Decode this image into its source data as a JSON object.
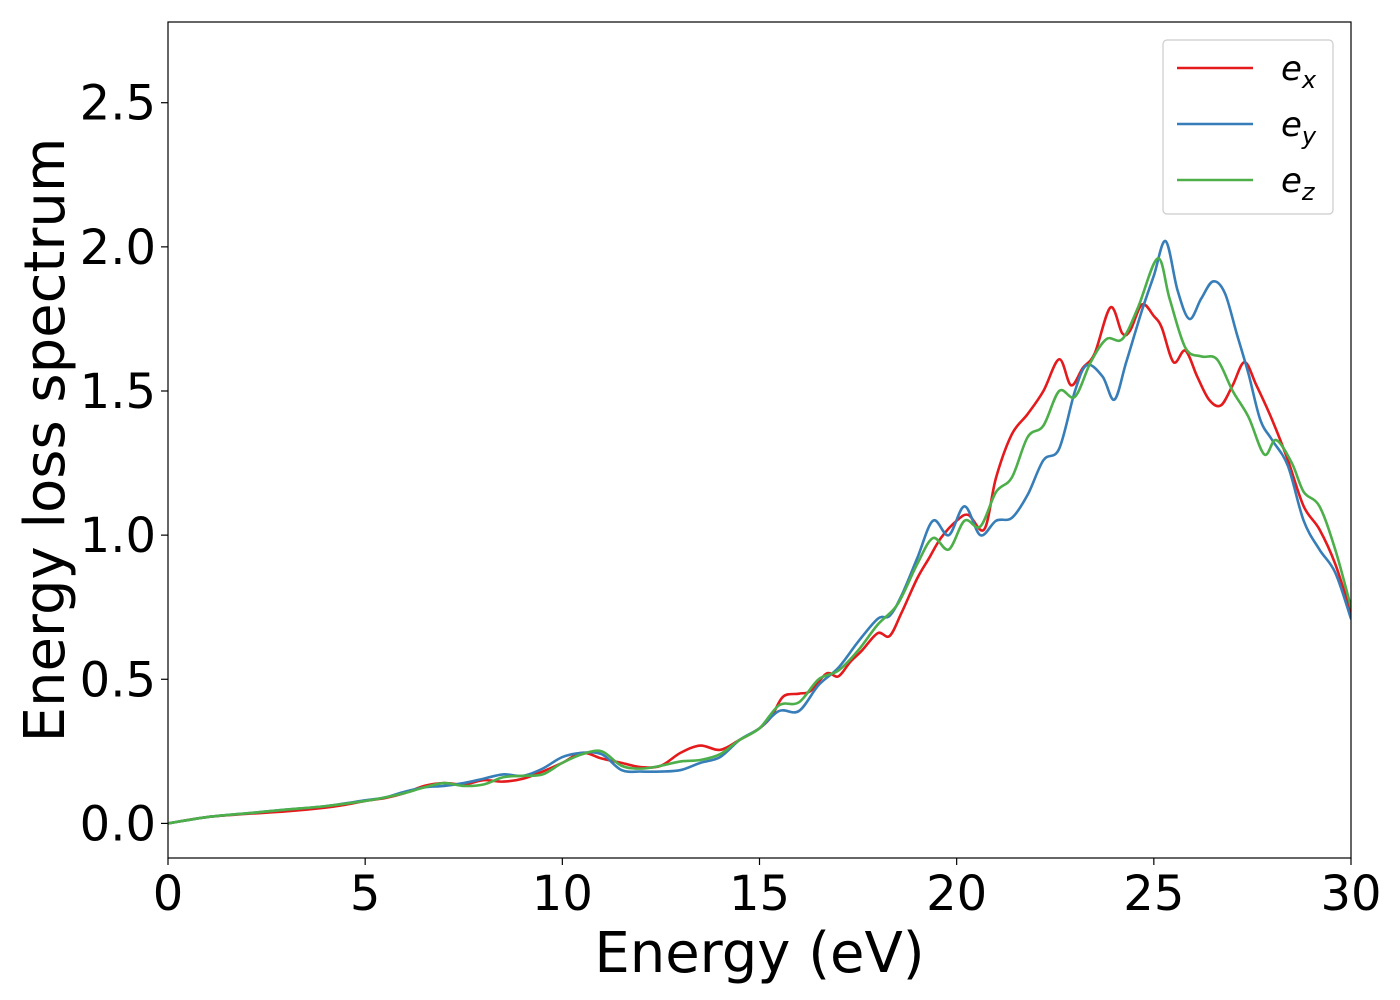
{
  "chart_data": {
    "type": "line",
    "title": "",
    "xlabel": "Energy (eV)",
    "ylabel": "Energy loss spectrum",
    "xlim": [
      0,
      30
    ],
    "ylim": [
      -0.12,
      2.78
    ],
    "xticks": [
      0,
      5,
      10,
      15,
      20,
      25,
      30
    ],
    "xtick_labels": [
      "0",
      "5",
      "10",
      "15",
      "20",
      "25",
      "30"
    ],
    "yticks": [
      0.0,
      0.5,
      1.0,
      1.5,
      2.0,
      2.5
    ],
    "ytick_labels": [
      "0.0",
      "0.5",
      "1.0",
      "1.5",
      "2.0",
      "2.5"
    ],
    "grid": false,
    "legend_position": "top-right",
    "series": [
      {
        "name": "e_x",
        "label_base": "e",
        "label_sub": "x",
        "color": "#e41a1c",
        "points": [
          [
            0,
            0
          ],
          [
            1,
            0.022
          ],
          [
            2,
            0.033
          ],
          [
            3,
            0.042
          ],
          [
            4,
            0.055
          ],
          [
            4.5,
            0.065
          ],
          [
            5,
            0.078
          ],
          [
            5.5,
            0.088
          ],
          [
            6,
            0.105
          ],
          [
            6.5,
            0.13
          ],
          [
            7,
            0.14
          ],
          [
            7.5,
            0.135
          ],
          [
            8,
            0.15
          ],
          [
            8.5,
            0.145
          ],
          [
            9,
            0.155
          ],
          [
            9.5,
            0.18
          ],
          [
            10,
            0.21
          ],
          [
            10.5,
            0.245
          ],
          [
            11,
            0.225
          ],
          [
            11.5,
            0.21
          ],
          [
            12,
            0.195
          ],
          [
            12.5,
            0.2
          ],
          [
            13,
            0.245
          ],
          [
            13.5,
            0.27
          ],
          [
            14,
            0.255
          ],
          [
            14.5,
            0.29
          ],
          [
            15,
            0.33
          ],
          [
            15.3,
            0.37
          ],
          [
            15.6,
            0.44
          ],
          [
            16,
            0.45
          ],
          [
            16.3,
            0.46
          ],
          [
            16.7,
            0.52
          ],
          [
            17,
            0.51
          ],
          [
            17.3,
            0.56
          ],
          [
            17.6,
            0.6
          ],
          [
            18,
            0.66
          ],
          [
            18.3,
            0.65
          ],
          [
            18.6,
            0.73
          ],
          [
            19,
            0.85
          ],
          [
            19.3,
            0.92
          ],
          [
            19.6,
            0.99
          ],
          [
            20,
            1.05
          ],
          [
            20.3,
            1.07
          ],
          [
            20.7,
            1.02
          ],
          [
            21,
            1.2
          ],
          [
            21.4,
            1.35
          ],
          [
            21.8,
            1.42
          ],
          [
            22.2,
            1.5
          ],
          [
            22.6,
            1.61
          ],
          [
            22.9,
            1.52
          ],
          [
            23.2,
            1.58
          ],
          [
            23.5,
            1.63
          ],
          [
            23.9,
            1.79
          ],
          [
            24.2,
            1.7
          ],
          [
            24.4,
            1.71
          ],
          [
            24.7,
            1.8
          ],
          [
            25.0,
            1.76
          ],
          [
            25.2,
            1.72
          ],
          [
            25.5,
            1.6
          ],
          [
            25.8,
            1.64
          ],
          [
            26.1,
            1.55
          ],
          [
            26.4,
            1.47
          ],
          [
            26.7,
            1.45
          ],
          [
            27.0,
            1.52
          ],
          [
            27.3,
            1.6
          ],
          [
            27.6,
            1.52
          ],
          [
            28.0,
            1.4
          ],
          [
            28.4,
            1.26
          ],
          [
            28.8,
            1.1
          ],
          [
            29.2,
            1.02
          ],
          [
            29.6,
            0.9
          ],
          [
            30,
            0.73
          ]
        ]
      },
      {
        "name": "e_y",
        "label_base": "e",
        "label_sub": "y",
        "color": "#377eb8",
        "points": [
          [
            0,
            0
          ],
          [
            1,
            0.022
          ],
          [
            2,
            0.035
          ],
          [
            3,
            0.048
          ],
          [
            4,
            0.06
          ],
          [
            5,
            0.08
          ],
          [
            5.5,
            0.09
          ],
          [
            6,
            0.11
          ],
          [
            6.5,
            0.125
          ],
          [
            7,
            0.13
          ],
          [
            7.5,
            0.14
          ],
          [
            8,
            0.155
          ],
          [
            8.5,
            0.17
          ],
          [
            9,
            0.165
          ],
          [
            9.5,
            0.19
          ],
          [
            10,
            0.23
          ],
          [
            10.5,
            0.245
          ],
          [
            11,
            0.24
          ],
          [
            11.5,
            0.185
          ],
          [
            12,
            0.18
          ],
          [
            12.5,
            0.18
          ],
          [
            13,
            0.185
          ],
          [
            13.5,
            0.21
          ],
          [
            14,
            0.23
          ],
          [
            14.5,
            0.29
          ],
          [
            15,
            0.33
          ],
          [
            15.5,
            0.39
          ],
          [
            16,
            0.39
          ],
          [
            16.5,
            0.48
          ],
          [
            17,
            0.54
          ],
          [
            17.5,
            0.63
          ],
          [
            18,
            0.71
          ],
          [
            18.3,
            0.72
          ],
          [
            18.6,
            0.79
          ],
          [
            19,
            0.92
          ],
          [
            19.4,
            1.05
          ],
          [
            19.8,
            1.0
          ],
          [
            20.2,
            1.1
          ],
          [
            20.6,
            1.0
          ],
          [
            21,
            1.05
          ],
          [
            21.4,
            1.06
          ],
          [
            21.8,
            1.14
          ],
          [
            22.2,
            1.26
          ],
          [
            22.6,
            1.3
          ],
          [
            23,
            1.5
          ],
          [
            23.3,
            1.59
          ],
          [
            23.7,
            1.55
          ],
          [
            24.0,
            1.47
          ],
          [
            24.3,
            1.6
          ],
          [
            24.7,
            1.78
          ],
          [
            25.0,
            1.9
          ],
          [
            25.3,
            2.02
          ],
          [
            25.6,
            1.85
          ],
          [
            25.9,
            1.75
          ],
          [
            26.2,
            1.82
          ],
          [
            26.5,
            1.88
          ],
          [
            26.8,
            1.84
          ],
          [
            27.1,
            1.7
          ],
          [
            27.4,
            1.56
          ],
          [
            27.7,
            1.4
          ],
          [
            28.0,
            1.33
          ],
          [
            28.4,
            1.24
          ],
          [
            28.8,
            1.05
          ],
          [
            29.2,
            0.95
          ],
          [
            29.6,
            0.87
          ],
          [
            30,
            0.71
          ]
        ]
      },
      {
        "name": "e_z",
        "label_base": "e",
        "label_sub": "z",
        "color": "#4daf4a",
        "points": [
          [
            0,
            0
          ],
          [
            1,
            0.022
          ],
          [
            2,
            0.035
          ],
          [
            3,
            0.048
          ],
          [
            4,
            0.06
          ],
          [
            5,
            0.078
          ],
          [
            5.5,
            0.09
          ],
          [
            6,
            0.105
          ],
          [
            6.5,
            0.125
          ],
          [
            7,
            0.14
          ],
          [
            7.5,
            0.13
          ],
          [
            8,
            0.135
          ],
          [
            8.5,
            0.16
          ],
          [
            9,
            0.165
          ],
          [
            9.5,
            0.17
          ],
          [
            10,
            0.21
          ],
          [
            10.5,
            0.24
          ],
          [
            11,
            0.25
          ],
          [
            11.5,
            0.2
          ],
          [
            12,
            0.19
          ],
          [
            12.5,
            0.2
          ],
          [
            13,
            0.215
          ],
          [
            13.5,
            0.22
          ],
          [
            14,
            0.24
          ],
          [
            14.5,
            0.29
          ],
          [
            15,
            0.33
          ],
          [
            15.5,
            0.41
          ],
          [
            16,
            0.42
          ],
          [
            16.5,
            0.5
          ],
          [
            17,
            0.53
          ],
          [
            17.5,
            0.6
          ],
          [
            18,
            0.69
          ],
          [
            18.5,
            0.76
          ],
          [
            19,
            0.9
          ],
          [
            19.4,
            0.99
          ],
          [
            19.8,
            0.95
          ],
          [
            20.2,
            1.05
          ],
          [
            20.6,
            1.03
          ],
          [
            21,
            1.15
          ],
          [
            21.4,
            1.2
          ],
          [
            21.8,
            1.34
          ],
          [
            22.2,
            1.38
          ],
          [
            22.6,
            1.5
          ],
          [
            23,
            1.48
          ],
          [
            23.4,
            1.6
          ],
          [
            23.8,
            1.68
          ],
          [
            24.2,
            1.68
          ],
          [
            24.6,
            1.79
          ],
          [
            25.1,
            1.96
          ],
          [
            25.4,
            1.82
          ],
          [
            25.8,
            1.65
          ],
          [
            26.2,
            1.62
          ],
          [
            26.6,
            1.61
          ],
          [
            27.0,
            1.5
          ],
          [
            27.4,
            1.41
          ],
          [
            27.8,
            1.28
          ],
          [
            28.1,
            1.33
          ],
          [
            28.5,
            1.25
          ],
          [
            28.8,
            1.15
          ],
          [
            29.2,
            1.1
          ],
          [
            29.6,
            0.95
          ],
          [
            30,
            0.75
          ]
        ]
      }
    ]
  }
}
